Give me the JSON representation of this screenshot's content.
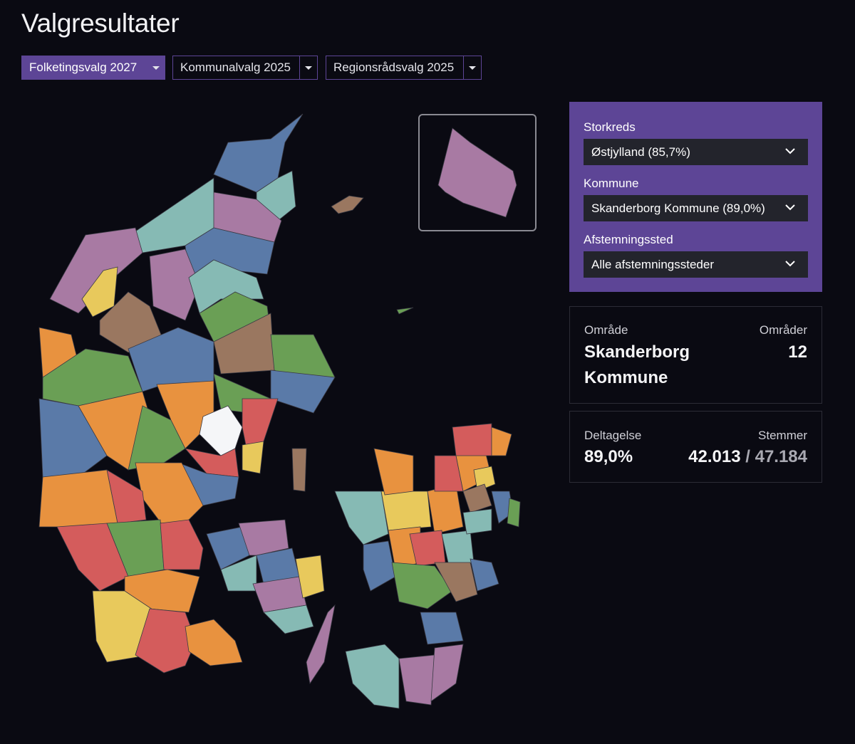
{
  "header": {
    "title": "Valgresultater"
  },
  "tabs": [
    {
      "label": "Folketingsvalg 2027"
    },
    {
      "label": "Kommunalvalg 2025"
    },
    {
      "label": "Regionsrådsvalg 2025"
    }
  ],
  "filters": [
    {
      "label": "Storkreds",
      "value": "Østjylland (85,7%)"
    },
    {
      "label": "Kommune",
      "value": "Skanderborg Kommune (89,0%)"
    },
    {
      "label": "Afstemningssted",
      "value": "Alle afstemningssteder"
    }
  ],
  "area": {
    "label": "Område",
    "name": "Skanderborg Kommune",
    "count_label": "Områder",
    "count": 12
  },
  "turnout": {
    "label": "Deltagelse",
    "value": "89,0%",
    "votes_label": "Stemmer",
    "votes_cast": "42.013",
    "separator": "/",
    "eligible": "47.184"
  }
}
